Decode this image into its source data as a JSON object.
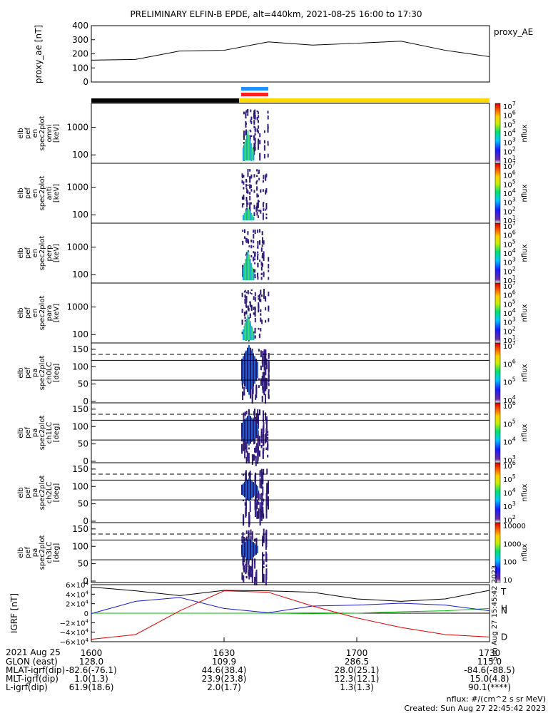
{
  "title": "PRELIMINARY ELFIN-B EPDE, alt=440km, 2021-08-25 16:00 to 17:30",
  "chart_data": [
    {
      "type": "line",
      "ylabel": "proxy_ae [nT]",
      "legend": "proxy_AE",
      "ylim": [
        0,
        400
      ],
      "yticks": [
        "0",
        "100",
        "200",
        "300",
        "400"
      ],
      "x_min": [
        0,
        10,
        20,
        30,
        40,
        50,
        60,
        70,
        80,
        90
      ],
      "series": [
        {
          "name": "proxy_AE",
          "values": [
            155,
            160,
            220,
            225,
            285,
            262,
            275,
            290,
            225,
            180
          ]
        }
      ]
    },
    {
      "type": "heatmap",
      "ylabel": "elb pef en spec2plot omni [keV]",
      "yticks": [
        "100",
        "1000"
      ],
      "colorbar": [
        "10^1",
        "10^2",
        "10^3",
        "10^4",
        "10^5",
        "10^6",
        "10^7"
      ],
      "clabel": "nflux"
    },
    {
      "type": "heatmap",
      "ylabel": "elb pef en spec2plot anti [keV]",
      "yticks": [
        "100",
        "1000"
      ],
      "colorbar": [
        "10^1",
        "10^2",
        "10^3",
        "10^4",
        "10^5",
        "10^6",
        "10^7"
      ],
      "clabel": "nflux"
    },
    {
      "type": "heatmap",
      "ylabel": "elb pef en spec2plot perp [keV]",
      "yticks": [
        "100",
        "1000"
      ],
      "colorbar": [
        "10^1",
        "10^2",
        "10^3",
        "10^4",
        "10^5",
        "10^6",
        "10^7"
      ],
      "clabel": "nflux"
    },
    {
      "type": "heatmap",
      "ylabel": "elb pef en spec2plot para [keV]",
      "yticks": [
        "100",
        "1000"
      ],
      "colorbar": [
        "10^1",
        "10^2",
        "10^3",
        "10^4",
        "10^5",
        "10^6",
        "10^7"
      ],
      "clabel": "nflux"
    },
    {
      "type": "heatmap",
      "ylabel": "elb pef pa spec2plot ch0LC [deg]",
      "yticks": [
        "0",
        "50",
        "100",
        "150"
      ],
      "colorbar": [
        "10^4",
        "10^5",
        "10^6",
        "10^7"
      ],
      "clabel": "nflux"
    },
    {
      "type": "heatmap",
      "ylabel": "elb pef pa spec2plot ch1LC [deg]",
      "yticks": [
        "0",
        "50",
        "100",
        "150"
      ],
      "colorbar": [
        "10^3",
        "10^4",
        "10^5",
        "10^6"
      ],
      "clabel": "nflux"
    },
    {
      "type": "heatmap",
      "ylabel": "elb pef pa spec2plot ch2LC [deg]",
      "yticks": [
        "0",
        "50",
        "100",
        "150"
      ],
      "colorbar": [
        "10^2",
        "10^3",
        "10^4",
        "10^5",
        "10^6"
      ],
      "clabel": "nflux"
    },
    {
      "type": "heatmap",
      "ylabel": "elb pef pa spec2plot ch3LC [deg]",
      "yticks": [
        "0",
        "50",
        "100",
        "150"
      ],
      "colorbar": [
        "10",
        "100",
        "1000",
        "10000"
      ],
      "clabel": "nflux"
    },
    {
      "type": "line",
      "ylabel": "IGRF [nT]",
      "yticks": [
        "6×10^4",
        "4×10^4",
        "2×10^4",
        "0",
        "−2×10^4",
        "−4×10^4",
        "−6×10^4"
      ],
      "ylim": [
        -60000,
        60000
      ],
      "series": [
        {
          "name": "T",
          "color": "#000000",
          "values": [
            55000,
            47000,
            37000,
            48000,
            47000,
            44000,
            30000,
            25000,
            30000,
            48000
          ]
        },
        {
          "name": "H",
          "color": "#00bb00",
          "values": [
            0,
            0,
            0,
            0,
            0,
            -1000,
            0,
            3000,
            5000,
            10000
          ]
        },
        {
          "name": "N",
          "color": "#1a1acc",
          "values": [
            -1000,
            25000,
            33000,
            10000,
            1000,
            15000,
            17000,
            21000,
            17000,
            5000
          ]
        },
        {
          "name": "D",
          "color": "#dd0000",
          "values": [
            -55000,
            -45000,
            5000,
            47000,
            44000,
            15000,
            -10000,
            -30000,
            -45000,
            -50000
          ]
        }
      ]
    }
  ],
  "x_axis": {
    "date": "2021 Aug 25",
    "ticks": [
      "1600",
      "1630",
      "1700",
      "1730"
    ],
    "rows": [
      {
        "label": "GLON (east)",
        "values": [
          "128.0",
          "109.9",
          "286.5",
          "115.0"
        ]
      },
      {
        "label": "MLAT-igrf(dip)",
        "values": [
          "-82.6(-76.1)",
          "44.6(38.4)",
          "28.0(25.1)",
          "-84.6(-88.5)"
        ]
      },
      {
        "label": "MLT-igrf(dip)",
        "values": [
          "1.0(1.3)",
          "23.9(23.8)",
          "12.3(12.1)",
          "15.0(4.8)"
        ]
      },
      {
        "label": "L-igrf(dip)",
        "values": [
          "61.9(18.6)",
          "2.0(1.7)",
          "1.3(1.3)",
          "90.1(****)"
        ]
      }
    ]
  },
  "footer": {
    "units": "nflux: #/(cm^2 s sr MeV)",
    "created": "Created: Sun Aug 27 22:45:42 2023",
    "side_stamp": "Sun Aug 27 15:45:42 2023"
  }
}
